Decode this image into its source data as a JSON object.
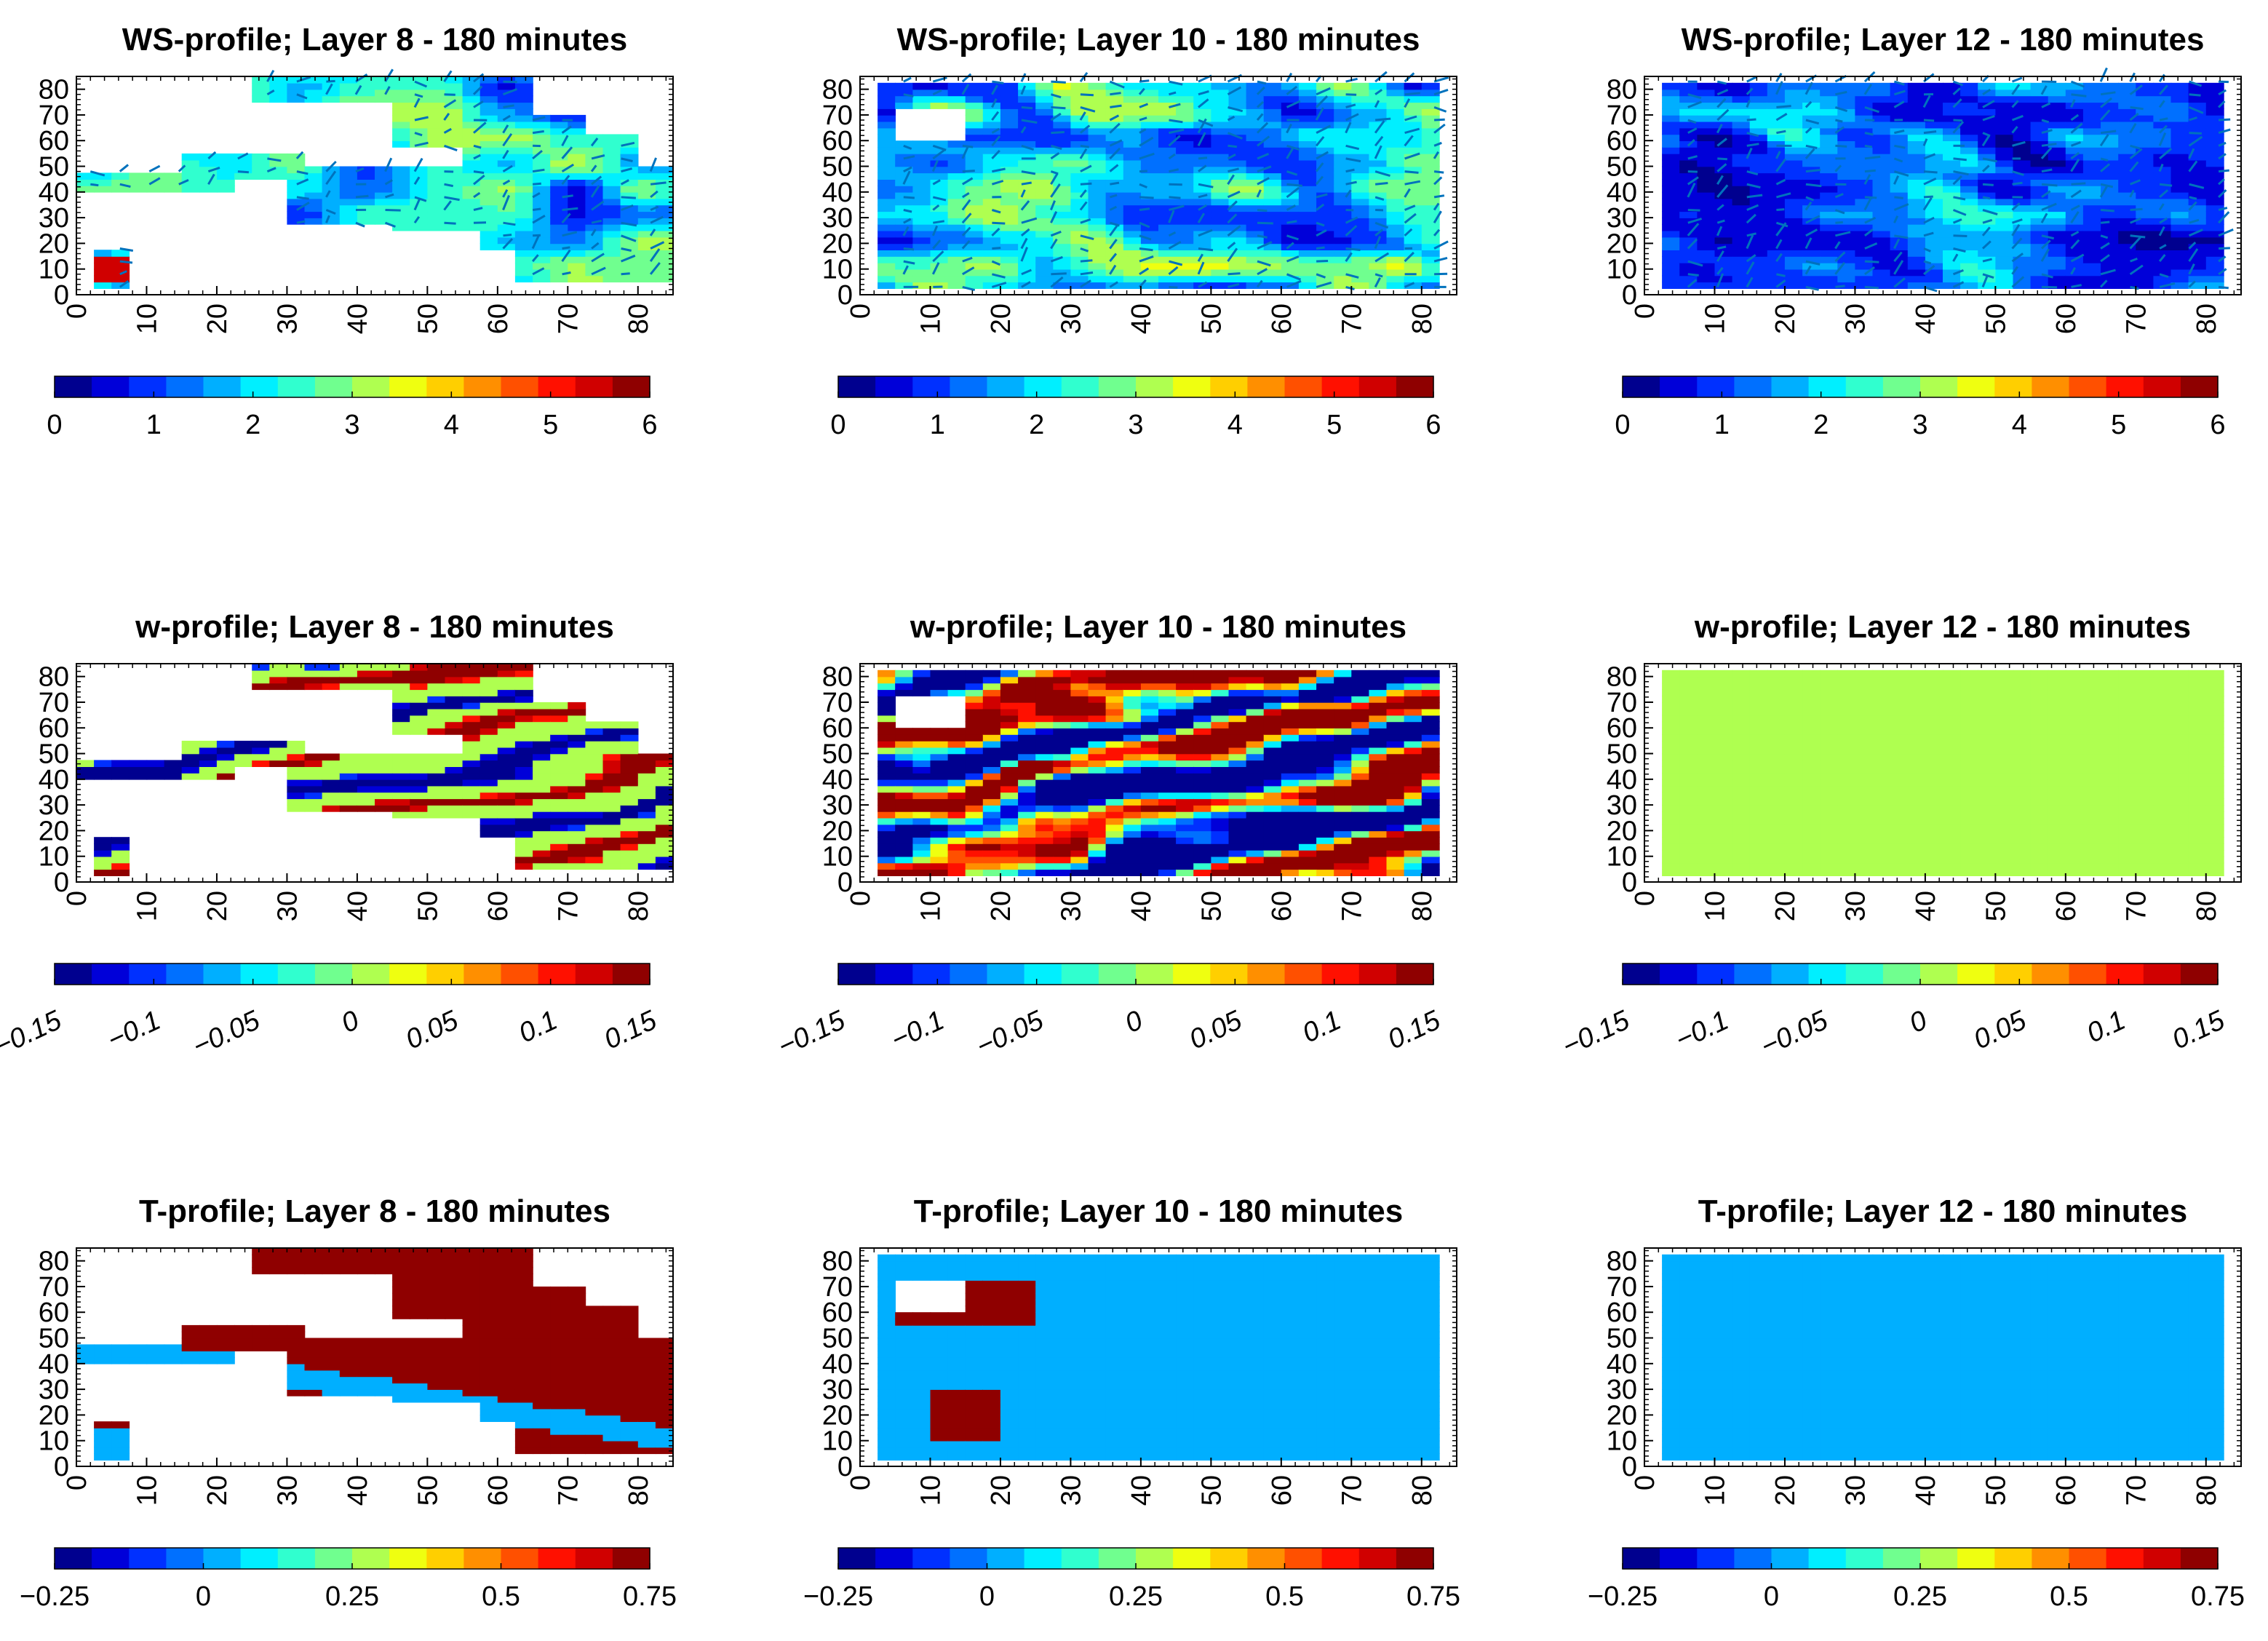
{
  "figure": {
    "palette": [
      "#00008F",
      "#0000D9",
      "#0030FF",
      "#0070FF",
      "#00AFFF",
      "#00EFFF",
      "#30FFCF",
      "#70FF8F",
      "#AFFF50",
      "#EFFF10",
      "#FFCF00",
      "#FF8F00",
      "#FF5000",
      "#FF1000",
      "#D00000",
      "#8F0000"
    ],
    "mask_color": "#ffffff"
  },
  "chart_data": [
    {
      "type": "heatmap",
      "title": "WS-profile; Layer 8 - 180 minutes",
      "variable": "WS",
      "layer": 8,
      "x_ticks": [
        "0",
        "10",
        "20",
        "30",
        "40",
        "50",
        "60",
        "70",
        "80"
      ],
      "y_ticks": [
        "0",
        "10",
        "20",
        "30",
        "40",
        "50",
        "60",
        "70",
        "80"
      ],
      "xlim": [
        0,
        85
      ],
      "ylim": [
        0,
        85
      ],
      "colorbar": {
        "range": [
          0,
          6
        ],
        "ticks": [
          "0",
          "1",
          "2",
          "3",
          "4",
          "5",
          "6"
        ]
      },
      "value_range_shown": [
        0,
        6
      ],
      "field_description": "irregular wetted domain with wind vectors; values mostly 0.5-3.5, hot spot ~6 near x=5,y=10",
      "has_vectors": true
    },
    {
      "type": "heatmap",
      "title": "WS-profile; Layer 10 - 180 minutes",
      "variable": "WS",
      "layer": 10,
      "x_ticks": [
        "0",
        "10",
        "20",
        "30",
        "40",
        "50",
        "60",
        "70",
        "80"
      ],
      "y_ticks": [
        "0",
        "10",
        "20",
        "30",
        "40",
        "50",
        "60",
        "70",
        "80"
      ],
      "xlim": [
        0,
        85
      ],
      "ylim": [
        0,
        85
      ],
      "colorbar": {
        "range": [
          0,
          6
        ],
        "ticks": [
          "0",
          "1",
          "2",
          "3",
          "4",
          "5",
          "6"
        ]
      },
      "value_range_shown": [
        0.3,
        4
      ],
      "field_description": "full rectangle x 3-83, y 3-83 with blank hole near x 5-15, y 60-72; wind vectors",
      "has_vectors": true
    },
    {
      "type": "heatmap",
      "title": "WS-profile; Layer 12 - 180 minutes",
      "variable": "WS",
      "layer": 12,
      "x_ticks": [
        "0",
        "10",
        "20",
        "30",
        "40",
        "50",
        "60",
        "70",
        "80"
      ],
      "y_ticks": [
        "0",
        "10",
        "20",
        "30",
        "40",
        "50",
        "60",
        "70",
        "80"
      ],
      "xlim": [
        0,
        85
      ],
      "ylim": [
        0,
        85
      ],
      "colorbar": {
        "range": [
          0,
          6
        ],
        "ticks": [
          "0",
          "1",
          "2",
          "3",
          "4",
          "5",
          "6"
        ]
      },
      "value_range_shown": [
        0.3,
        3
      ],
      "field_description": "full rectangle x 3-83, y 3-83; mostly blue values with wind vectors",
      "has_vectors": true
    },
    {
      "type": "heatmap",
      "title": "w-profile; Layer 8 - 180 minutes",
      "variable": "w",
      "layer": 8,
      "x_ticks": [
        "0",
        "10",
        "20",
        "30",
        "40",
        "50",
        "60",
        "70",
        "80"
      ],
      "y_ticks": [
        "0",
        "10",
        "20",
        "30",
        "40",
        "50",
        "60",
        "70",
        "80"
      ],
      "xlim": [
        0,
        85
      ],
      "ylim": [
        0,
        85
      ],
      "colorbar": {
        "range": [
          -0.15,
          0.15
        ],
        "ticks": [
          "−0.15",
          "−0.1",
          "−0.05",
          "0",
          "0.05",
          "0.1",
          "0.15"
        ]
      },
      "value_range_shown": [
        -0.15,
        0.15
      ],
      "field_description": "irregular wetted domain; mostly 0 with diagonal positive/negative bands",
      "has_vectors": false
    },
    {
      "type": "heatmap",
      "title": "w-profile; Layer 10 - 180 minutes",
      "variable": "w",
      "layer": 10,
      "x_ticks": [
        "0",
        "10",
        "20",
        "30",
        "40",
        "50",
        "60",
        "70",
        "80"
      ],
      "y_ticks": [
        "0",
        "10",
        "20",
        "30",
        "40",
        "50",
        "60",
        "70",
        "80"
      ],
      "xlim": [
        0,
        85
      ],
      "ylim": [
        0,
        85
      ],
      "colorbar": {
        "range": [
          -0.15,
          0.15
        ],
        "ticks": [
          "−0.15",
          "−0.1",
          "−0.05",
          "0",
          "0.05",
          "0.1",
          "0.15"
        ]
      },
      "value_range_shown": [
        -0.15,
        0.15
      ],
      "field_description": "full rectangle with hole; strong alternating diagonal bands saturating at +/-0.15",
      "has_vectors": false
    },
    {
      "type": "heatmap",
      "title": "w-profile; Layer 12 - 180 minutes",
      "variable": "w",
      "layer": 12,
      "x_ticks": [
        "0",
        "10",
        "20",
        "30",
        "40",
        "50",
        "60",
        "70",
        "80"
      ],
      "y_ticks": [
        "0",
        "10",
        "20",
        "30",
        "40",
        "50",
        "60",
        "70",
        "80"
      ],
      "xlim": [
        0,
        85
      ],
      "ylim": [
        0,
        85
      ],
      "colorbar": {
        "range": [
          -0.15,
          0.15
        ],
        "ticks": [
          "−0.15",
          "−0.1",
          "−0.05",
          "0",
          "0.05",
          "0.1",
          "0.15"
        ]
      },
      "value_range_shown": [
        0,
        0
      ],
      "field_description": "uniform value 0 over x 3-83, y 3-83",
      "has_vectors": false
    },
    {
      "type": "heatmap",
      "title": "T-profile; Layer 8 - 180 minutes",
      "variable": "T",
      "layer": 8,
      "x_ticks": [
        "0",
        "10",
        "20",
        "30",
        "40",
        "50",
        "60",
        "70",
        "80"
      ],
      "y_ticks": [
        "0",
        "10",
        "20",
        "30",
        "40",
        "50",
        "60",
        "70",
        "80"
      ],
      "xlim": [
        0,
        85
      ],
      "ylim": [
        0,
        85
      ],
      "colorbar": {
        "range": [
          -0.25,
          0.75
        ],
        "ticks": [
          "−0.25",
          "0",
          "0.25",
          "0.5",
          "0.75"
        ]
      },
      "value_range_shown": [
        0,
        0.75
      ],
      "field_description": "irregular wetted domain; mostly 0.75 (dark red) with a diagonal band of ~0.05 (light blue)",
      "has_vectors": false
    },
    {
      "type": "heatmap",
      "title": "T-profile; Layer 10 - 180 minutes",
      "variable": "T",
      "layer": 10,
      "x_ticks": [
        "0",
        "10",
        "20",
        "30",
        "40",
        "50",
        "60",
        "70",
        "80"
      ],
      "y_ticks": [
        "0",
        "10",
        "20",
        "30",
        "40",
        "50",
        "60",
        "70",
        "80"
      ],
      "xlim": [
        0,
        85
      ],
      "ylim": [
        0,
        85
      ],
      "colorbar": {
        "range": [
          -0.25,
          0.75
        ],
        "ticks": [
          "−0.25",
          "0",
          "0.25",
          "0.5",
          "0.75"
        ]
      },
      "value_range_shown": [
        0.05,
        0.75
      ],
      "field_description": "mostly ~0.05 with two warm patches (~0.75) near x 5-25, y 55-72 and x 10-20, y 10-30",
      "has_vectors": false
    },
    {
      "type": "heatmap",
      "title": "T-profile; Layer 12 - 180 minutes",
      "variable": "T",
      "layer": 12,
      "x_ticks": [
        "0",
        "10",
        "20",
        "30",
        "40",
        "50",
        "60",
        "70",
        "80"
      ],
      "y_ticks": [
        "0",
        "10",
        "20",
        "30",
        "40",
        "50",
        "60",
        "70",
        "80"
      ],
      "xlim": [
        0,
        85
      ],
      "ylim": [
        0,
        85
      ],
      "colorbar": {
        "range": [
          -0.25,
          0.75
        ],
        "ticks": [
          "−0.25",
          "0",
          "0.25",
          "0.5",
          "0.75"
        ]
      },
      "value_range_shown": [
        0.05,
        0.05
      ],
      "field_description": "uniform ~0.05 over x 3-83, y 3-83",
      "has_vectors": false
    }
  ]
}
